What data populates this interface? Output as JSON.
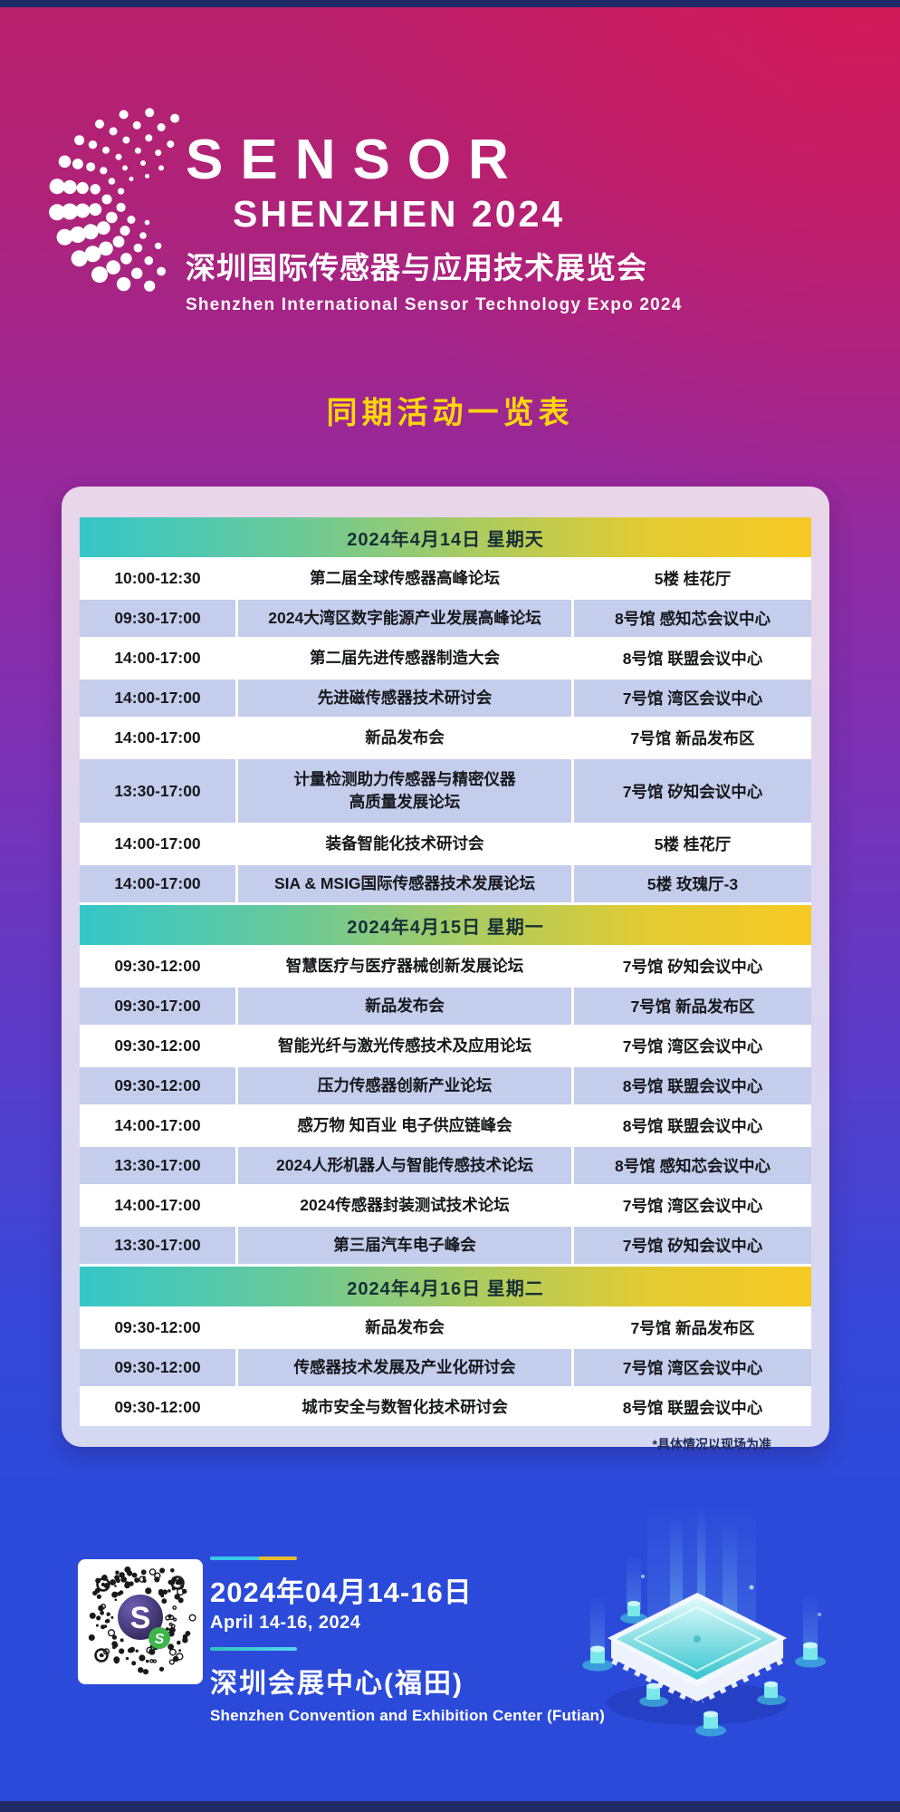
{
  "logo": {
    "name": "SENSOR",
    "subname": "SHENZHEN 2024",
    "cn": "深圳国际传感器与应用技术展览会",
    "en": "Shenzhen International Sensor Technology Expo 2024"
  },
  "section_title": "同期活动一览表",
  "schedule": {
    "days": [
      {
        "date": "2024年4月14日 星期天",
        "rows": [
          {
            "time": "10:00-12:30",
            "event": "第二届全球传感器高峰论坛",
            "venue": "5楼 桂花厅"
          },
          {
            "time": "09:30-17:00",
            "event": "2024大湾区数字能源产业发展高峰论坛",
            "venue": "8号馆 感知芯会议中心"
          },
          {
            "time": "14:00-17:00",
            "event": "第二届先进传感器制造大会",
            "venue": "8号馆 联盟会议中心"
          },
          {
            "time": "14:00-17:00",
            "event": "先进磁传感器技术研讨会",
            "venue": "7号馆 湾区会议中心"
          },
          {
            "time": "14:00-17:00",
            "event": "新品发布会",
            "venue": "7号馆 新品发布区"
          },
          {
            "time": "13:30-17:00",
            "event": "计量检测助力传感器与精密仪器\n高质量发展论坛",
            "venue": "7号馆 矽知会议中心"
          },
          {
            "time": "14:00-17:00",
            "event": "装备智能化技术研讨会",
            "venue": "5楼 桂花厅"
          },
          {
            "time": "14:00-17:00",
            "event": "SIA & MSIG国际传感器技术发展论坛",
            "venue": "5楼 玫瑰厅-3"
          }
        ]
      },
      {
        "date": "2024年4月15日 星期一",
        "rows": [
          {
            "time": "09:30-12:00",
            "event": "智慧医疗与医疗器械创新发展论坛",
            "venue": "7号馆 矽知会议中心"
          },
          {
            "time": "09:30-17:00",
            "event": "新品发布会",
            "venue": "7号馆 新品发布区"
          },
          {
            "time": "09:30-12:00",
            "event": "智能光纤与激光传感技术及应用论坛",
            "venue": "7号馆 湾区会议中心"
          },
          {
            "time": "09:30-12:00",
            "event": "压力传感器创新产业论坛",
            "venue": "8号馆 联盟会议中心"
          },
          {
            "time": "14:00-17:00",
            "event": "感万物 知百业 电子供应链峰会",
            "venue": "8号馆 联盟会议中心"
          },
          {
            "time": "13:30-17:00",
            "event": "2024人形机器人与智能传感技术论坛",
            "venue": "8号馆 感知芯会议中心"
          },
          {
            "time": "14:00-17:00",
            "event": "2024传感器封装测试技术论坛",
            "venue": "7号馆 湾区会议中心"
          },
          {
            "time": "13:30-17:00",
            "event": "第三届汽车电子峰会",
            "venue": "7号馆 矽知会议中心"
          }
        ]
      },
      {
        "date": "2024年4月16日 星期二",
        "rows": [
          {
            "time": "09:30-12:00",
            "event": "新品发布会",
            "venue": "7号馆 新品发布区"
          },
          {
            "time": "09:30-12:00",
            "event": "传感器技术发展及产业化研讨会",
            "venue": "7号馆 湾区会议中心"
          },
          {
            "time": "09:30-12:00",
            "event": "城市安全与数智化技术研讨会",
            "venue": "8号馆 联盟会议中心"
          }
        ]
      }
    ],
    "footnote": "*具体情况以现场为准"
  },
  "footer": {
    "date_cn": "2024年04月14-16日",
    "date_en": "April 14-16, 2024",
    "venue_cn": "深圳会展中心(福田)",
    "venue_en": "Shenzhen Convention and Exhibition Center (Futian)",
    "qr_letter": "S"
  },
  "colors": {
    "title_yellow": "#ffd60c",
    "header_gradient_start": "#35c6c9",
    "header_gradient_end": "#f6c924",
    "row_alt_blue": "#c4cdeb",
    "top_magenta": "#b9206b",
    "bottom_blue": "#2b4ad9",
    "edge_navy": "#1f2a66"
  }
}
